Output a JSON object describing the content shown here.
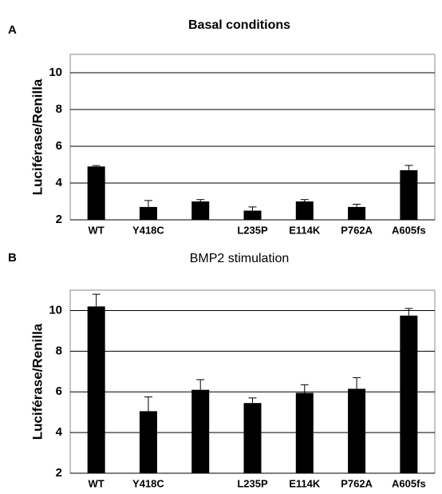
{
  "chart_data": [
    {
      "type": "bar",
      "panel": "A",
      "title": "Basal conditions",
      "ylabel": "Luciférase/Renilla",
      "categories": [
        "WT",
        "Y418C",
        null,
        "L235P",
        "E114K",
        "P762A",
        "A605fs"
      ],
      "values": [
        4.9,
        2.7,
        3.0,
        2.5,
        3.0,
        2.7,
        4.7
      ],
      "errors": [
        0.05,
        0.35,
        0.1,
        0.2,
        0.1,
        0.15,
        0.26
      ],
      "color": "#000000",
      "ylim": [
        2,
        11
      ],
      "yticks": [
        2,
        4,
        6,
        8,
        10
      ],
      "grid": true
    },
    {
      "type": "bar",
      "panel": "B",
      "title": "BMP2 stimulation",
      "ylabel": "Luciférase/Renilla",
      "categories": [
        "WT",
        "Y418C",
        null,
        "L235P",
        "E114K",
        "P762A",
        "A605fs"
      ],
      "values": [
        10.2,
        5.05,
        6.1,
        5.45,
        5.95,
        6.15,
        9.75
      ],
      "errors": [
        0.6,
        0.7,
        0.5,
        0.25,
        0.4,
        0.55,
        0.35
      ],
      "color": "#000000",
      "ylim": [
        2,
        11
      ],
      "yticks": [
        2,
        4,
        6,
        8,
        10
      ],
      "grid": true
    }
  ]
}
